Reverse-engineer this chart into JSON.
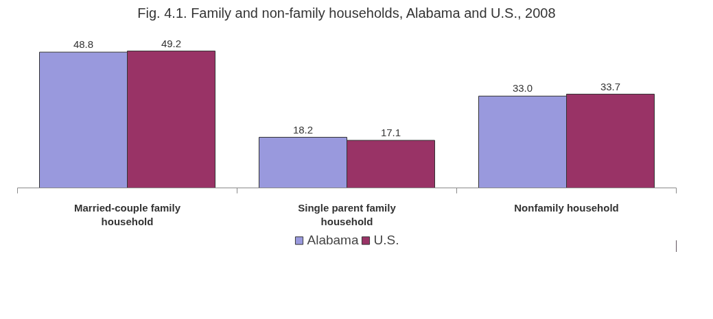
{
  "chart_data": {
    "type": "bar",
    "title": "Fig. 4.1. Family and non-family households, Alabama and U.S., 2008",
    "categories": [
      "Married-couple family household",
      "Single parent family household",
      "Nonfamily household"
    ],
    "series": [
      {
        "name": "Alabama",
        "color": "#9999dd",
        "values": [
          48.8,
          18.2,
          33.0
        ],
        "value_labels": [
          "48.8",
          "18.2",
          "33.0"
        ]
      },
      {
        "name": "U.S.",
        "color": "#993366",
        "values": [
          49.2,
          17.1,
          33.7
        ],
        "value_labels": [
          "49.2",
          "17.1",
          "33.7"
        ]
      }
    ],
    "legend": "bottom",
    "grid": false
  }
}
